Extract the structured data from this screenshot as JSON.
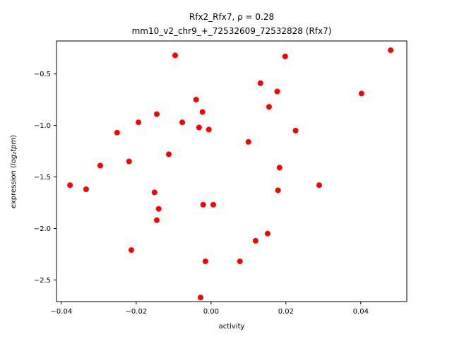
{
  "chart_data": {
    "type": "scatter",
    "title_line1": "Rfx2_Rfx7, ρ = 0.28",
    "title_line2": "mm10_v2_chr9_+_72532609_72532828 (Rfx7)",
    "xlabel": "activity",
    "ylabel_prefix": "expression (",
    "ylabel_math": "log₂tpm",
    "ylabel_suffix": ")",
    "marker_color": "#ff0000",
    "axis_color": "#000000",
    "legend": "none",
    "grid": false,
    "xlim": [
      -0.0413,
      0.0523
    ],
    "ylim": [
      -2.71,
      -0.18
    ],
    "xticks": [
      -0.04,
      -0.02,
      0.0,
      0.02,
      0.04
    ],
    "xtick_labels": [
      "−0.04",
      "−0.02",
      "0.00",
      "0.02",
      "0.04"
    ],
    "yticks": [
      -0.5,
      -1.0,
      -1.5,
      -2.0,
      -2.5
    ],
    "ytick_labels": [
      "−0.5",
      "−1.0",
      "−1.5",
      "−2.0",
      "−2.5"
    ],
    "points": [
      [
        0.048,
        -0.27
      ],
      [
        -0.0096,
        -0.32
      ],
      [
        0.0198,
        -0.33
      ],
      [
        0.0132,
        -0.59
      ],
      [
        0.0402,
        -0.69
      ],
      [
        0.0177,
        -0.67
      ],
      [
        -0.004,
        -0.75
      ],
      [
        0.0155,
        -0.82
      ],
      [
        -0.0023,
        -0.87
      ],
      [
        -0.0145,
        -0.89
      ],
      [
        -0.0194,
        -0.97
      ],
      [
        -0.0077,
        -0.97
      ],
      [
        -0.0032,
        -1.02
      ],
      [
        -0.0006,
        -1.04
      ],
      [
        0.0226,
        -1.05
      ],
      [
        -0.0251,
        -1.07
      ],
      [
        0.01,
        -1.16
      ],
      [
        -0.0113,
        -1.28
      ],
      [
        -0.0219,
        -1.35
      ],
      [
        -0.0296,
        -1.39
      ],
      [
        0.0183,
        -1.41
      ],
      [
        -0.0377,
        -1.58
      ],
      [
        0.0289,
        -1.58
      ],
      [
        -0.0334,
        -1.62
      ],
      [
        0.0179,
        -1.63
      ],
      [
        -0.0151,
        -1.65
      ],
      [
        -0.0021,
        -1.77
      ],
      [
        0.0006,
        -1.77
      ],
      [
        -0.014,
        -1.81
      ],
      [
        -0.0145,
        -1.92
      ],
      [
        0.0151,
        -2.05
      ],
      [
        0.0119,
        -2.12
      ],
      [
        -0.0213,
        -2.21
      ],
      [
        -0.0015,
        -2.32
      ],
      [
        0.0077,
        -2.32
      ],
      [
        -0.0028,
        -2.67
      ]
    ]
  }
}
